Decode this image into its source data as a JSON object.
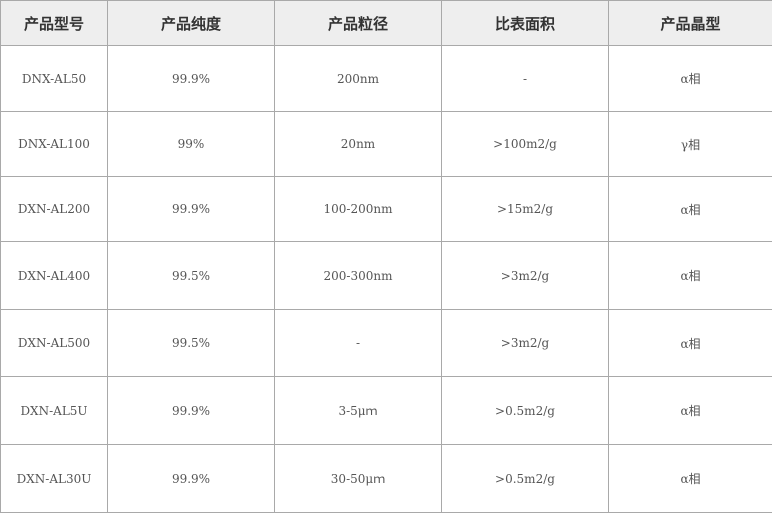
{
  "table": {
    "headers": [
      "产品型号",
      "产品纯度",
      "产品粒径",
      "比表面积",
      "产品晶型"
    ],
    "rows": [
      [
        "DNX-AL50",
        "99.9%",
        "200nm",
        "-",
        "α相"
      ],
      [
        "DNX-AL100",
        "99%",
        "20nm",
        ">100m2/g",
        "γ相"
      ],
      [
        "DXN-AL200",
        "99.9%",
        "100-200nm",
        ">15m2/g",
        "α相"
      ],
      [
        "DXN-AL400",
        "99.5%",
        "200-300nm",
        ">3m2/g",
        "α相"
      ],
      [
        "DXN-AL500",
        "99.5%",
        "-",
        ">3m2/g",
        "α相"
      ],
      [
        "DXN-AL5U",
        "99.9%",
        "3-5μｍ",
        ">0.5m2/g",
        "α相"
      ],
      [
        "DXN-AL30U",
        "99.9%",
        "30-50μｍ",
        ">0.5m2/g",
        "α相"
      ]
    ]
  }
}
